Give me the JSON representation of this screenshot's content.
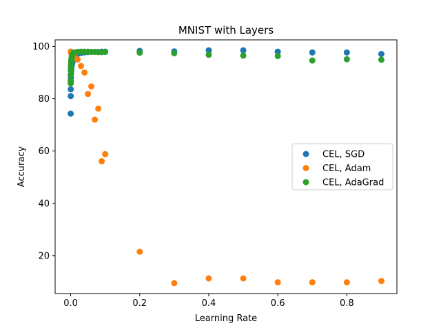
{
  "chart_data": {
    "type": "scatter",
    "title": "MNIST with Layers",
    "xlabel": "Learning Rate",
    "ylabel": "Accuracy",
    "xlim": [
      -0.045,
      0.945
    ],
    "ylim": [
      5.5,
      102.5
    ],
    "x_ticks": [
      0.0,
      0.2,
      0.4,
      0.6,
      0.8
    ],
    "x_tick_labels": [
      "0.0",
      "0.2",
      "0.4",
      "0.6",
      "0.8"
    ],
    "y_ticks": [
      20,
      40,
      60,
      80,
      100
    ],
    "y_tick_labels": [
      "20",
      "40",
      "60",
      "80",
      "100"
    ],
    "grid": false,
    "legend_position": "center-right",
    "series": [
      {
        "name": "CEL, SGD",
        "color": "#1f77b4",
        "x": [
          0.0001,
          0.0002,
          0.0003,
          0.0005,
          0.0007,
          0.001,
          0.0015,
          0.002,
          0.003,
          0.004,
          0.005,
          0.006,
          0.007,
          0.008,
          0.009,
          0.01,
          0.02,
          0.03,
          0.04,
          0.05,
          0.06,
          0.07,
          0.08,
          0.09,
          0.1,
          0.2,
          0.3,
          0.4,
          0.5,
          0.6,
          0.7,
          0.8,
          0.9
        ],
        "y": [
          74.3,
          81.0,
          83.6,
          86.3,
          88.0,
          89.4,
          90.5,
          91.5,
          92.6,
          93.4,
          94.0,
          94.5,
          95.0,
          95.5,
          95.8,
          96.2,
          97.1,
          97.5,
          97.7,
          97.8,
          97.9,
          97.9,
          97.9,
          98.0,
          98.0,
          98.3,
          98.1,
          98.5,
          98.5,
          98.0,
          97.7,
          97.7,
          97.1
        ]
      },
      {
        "name": "CEL, Adam",
        "color": "#ff7f0e",
        "x": [
          0.0001,
          0.0005,
          0.001,
          0.002,
          0.005,
          0.01,
          0.02,
          0.03,
          0.04,
          0.05,
          0.06,
          0.07,
          0.08,
          0.09,
          0.1,
          0.2,
          0.3,
          0.4,
          0.5,
          0.6,
          0.7,
          0.8,
          0.9
        ],
        "y": [
          98.0,
          97.8,
          97.5,
          97.3,
          96.8,
          96.0,
          95.0,
          92.5,
          90.0,
          81.8,
          84.7,
          72.0,
          76.2,
          56.1,
          58.8,
          21.5,
          9.5,
          11.3,
          11.3,
          9.8,
          9.8,
          9.8,
          10.3
        ]
      },
      {
        "name": "CEL, AdaGrad",
        "color": "#2ca02c",
        "x": [
          0.0001,
          0.0002,
          0.0003,
          0.0005,
          0.0007,
          0.001,
          0.0015,
          0.002,
          0.003,
          0.004,
          0.005,
          0.006,
          0.007,
          0.008,
          0.009,
          0.01,
          0.02,
          0.03,
          0.04,
          0.05,
          0.06,
          0.07,
          0.08,
          0.09,
          0.1,
          0.2,
          0.3,
          0.4,
          0.5,
          0.6,
          0.7,
          0.8,
          0.9
        ],
        "y": [
          85.9,
          87.0,
          89.2,
          90.8,
          91.9,
          93.0,
          94.2,
          95.1,
          95.8,
          96.4,
          96.8,
          97.1,
          97.3,
          97.5,
          97.6,
          97.7,
          97.9,
          98.0,
          98.0,
          98.0,
          97.9,
          97.9,
          97.8,
          97.8,
          97.9,
          97.6,
          97.4,
          96.8,
          96.5,
          96.3,
          94.6,
          95.1,
          94.9
        ]
      }
    ]
  }
}
